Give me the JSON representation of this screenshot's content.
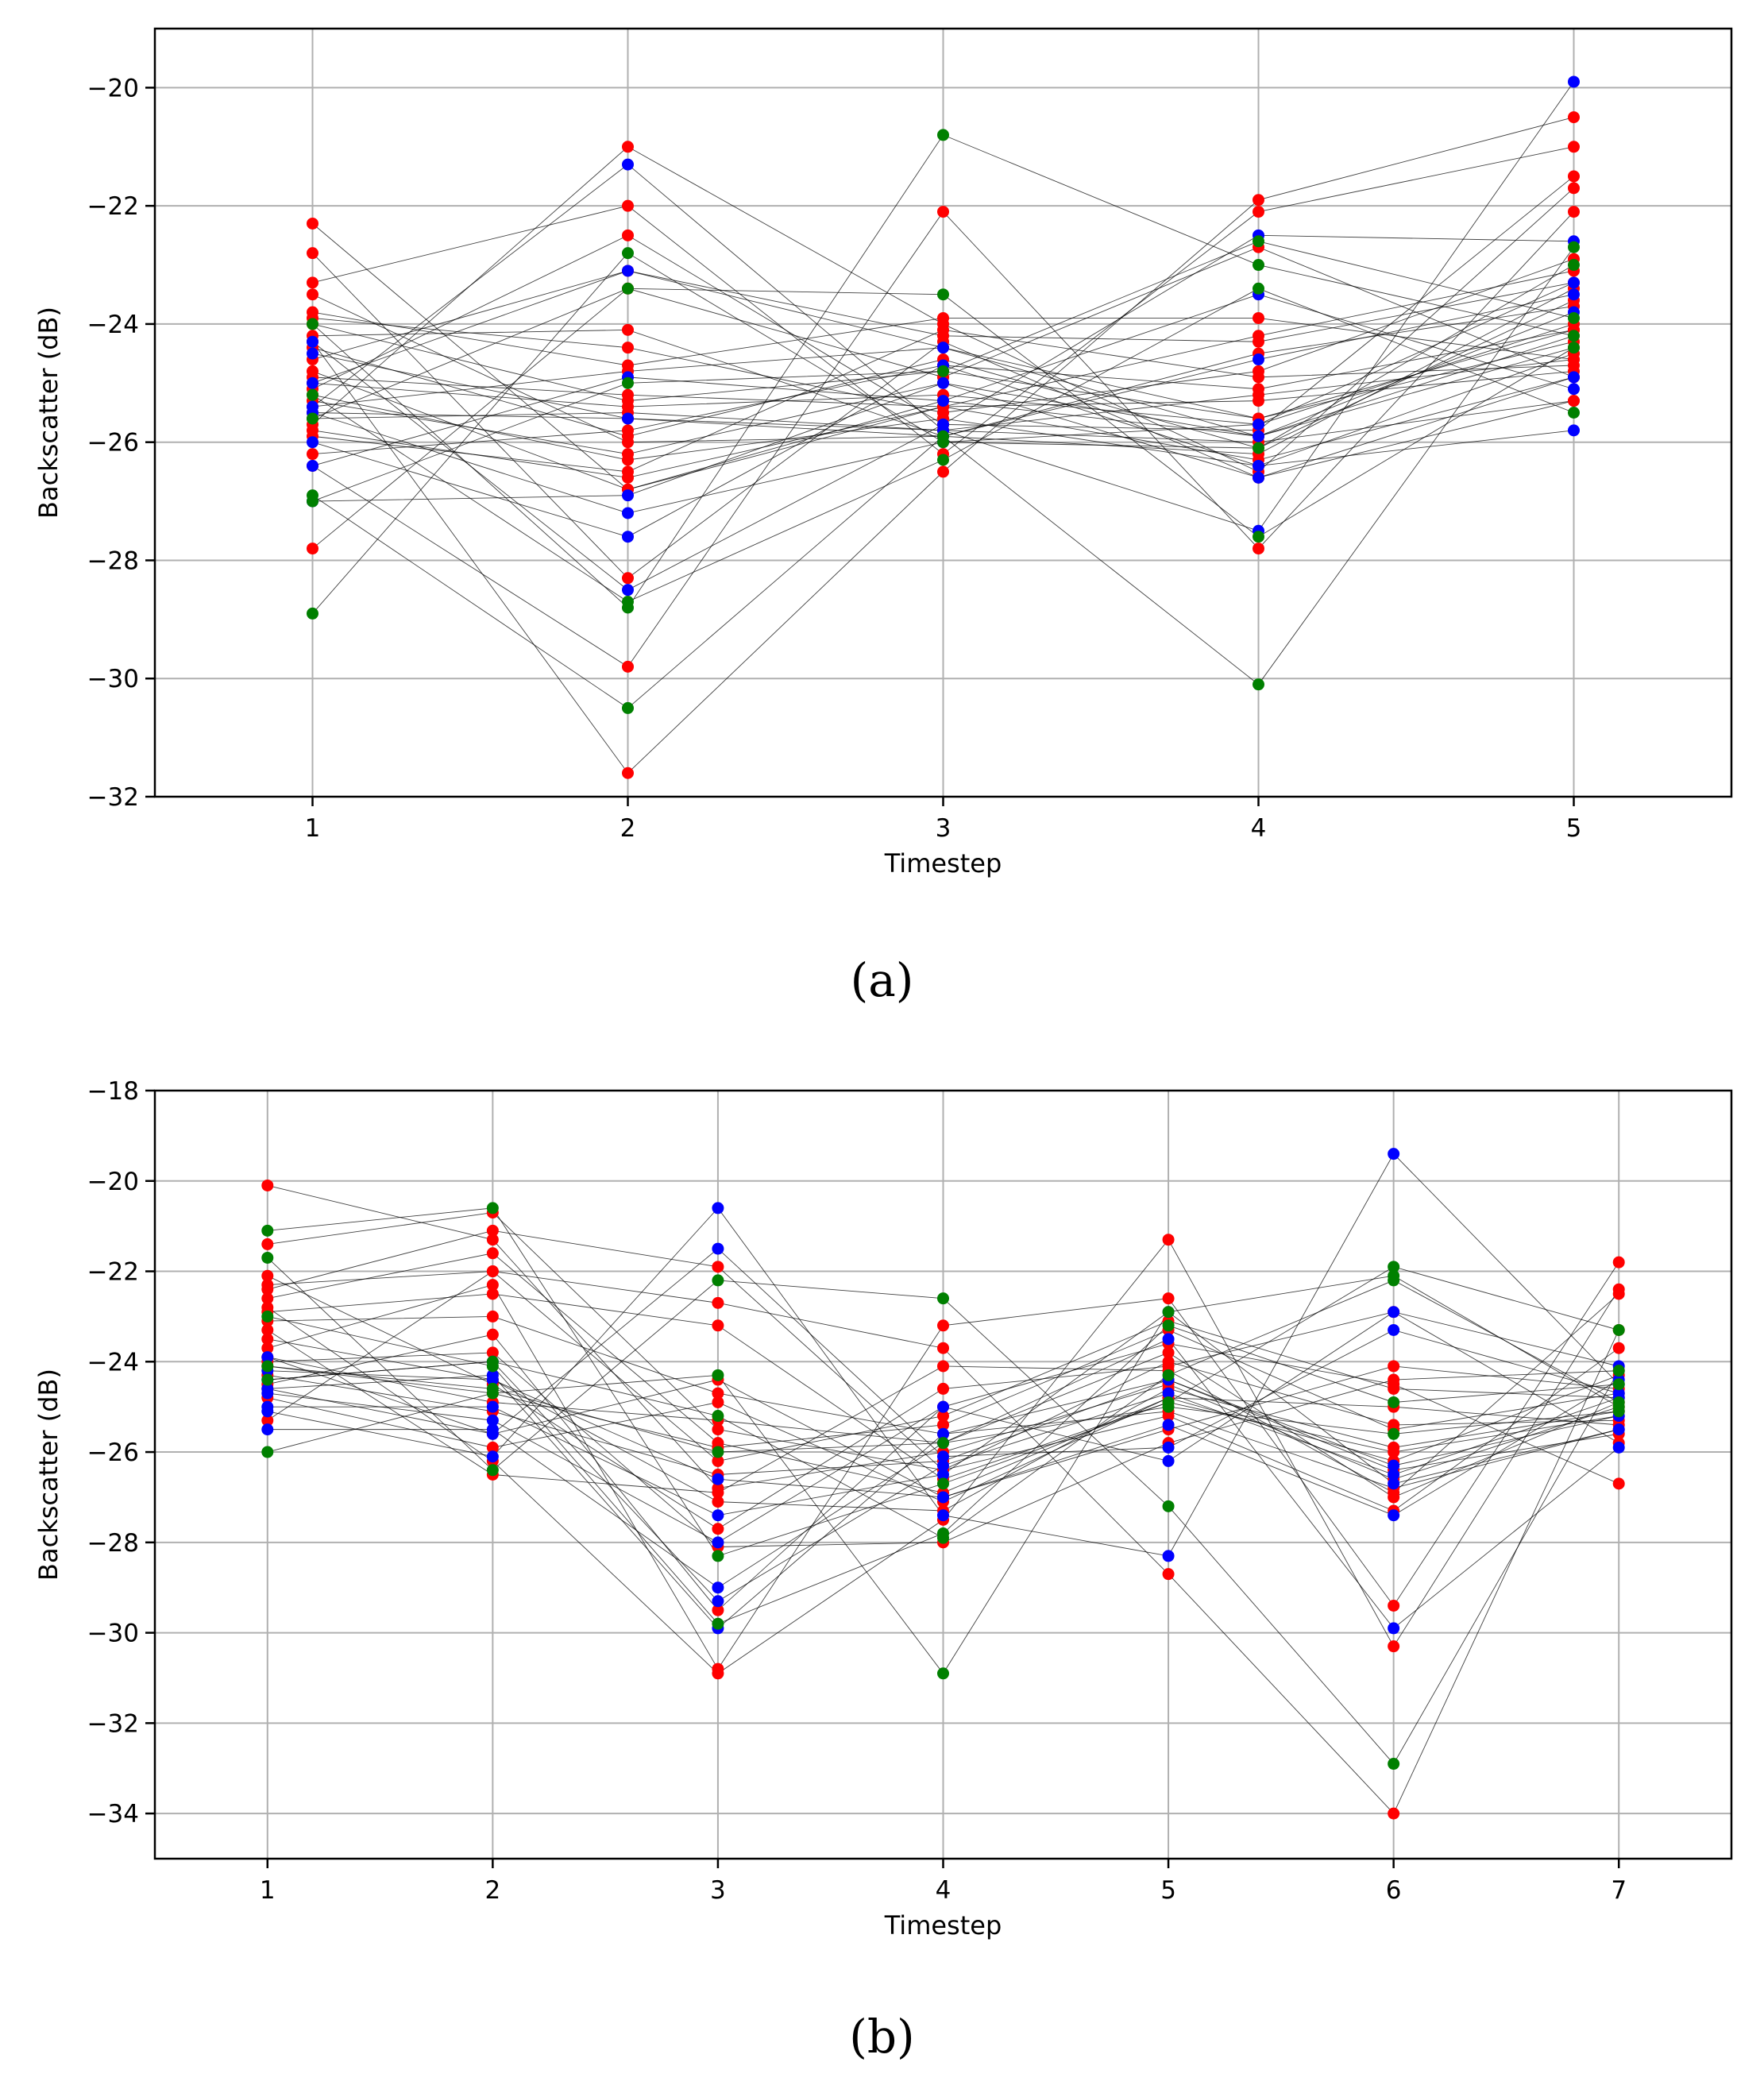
{
  "chart_data": [
    {
      "type": "line",
      "panel_label": "(a)",
      "xlabel": "Timestep",
      "ylabel": "Backscatter (dB)",
      "x": [
        1,
        2,
        3,
        4,
        5
      ],
      "xticks": [
        "1",
        "2",
        "3",
        "4",
        "5"
      ],
      "xlim": [
        0.5,
        5.5
      ],
      "ylim": [
        -32,
        -19
      ],
      "yticks": [
        -32,
        -30,
        -28,
        -26,
        -24,
        -22,
        -20
      ],
      "ytick_labels": [
        "−32",
        "−30",
        "−28",
        "−26",
        "−24",
        "−22",
        "−20"
      ],
      "grid": true,
      "line_color": "#000000",
      "point_colors": [
        "#ff0000",
        "#0000ff",
        "#008000"
      ],
      "series": [
        {
          "color": "#ff0000",
          "values": [
            -24.0,
            -25.3,
            -24.8,
            -25.6,
            -24.1
          ]
        },
        {
          "color": "#ff0000",
          "values": [
            -25.3,
            -26.2,
            -25.0,
            -25.9,
            -24.4
          ]
        },
        {
          "color": "#ff0000",
          "values": [
            -24.6,
            -23.1,
            -24.2,
            -24.3,
            -23.3
          ]
        },
        {
          "color": "#ff0000",
          "values": [
            -25.8,
            -26.6,
            -25.4,
            -26.3,
            -24.9
          ]
        },
        {
          "color": "#ff0000",
          "values": [
            -23.9,
            -24.4,
            -25.5,
            -24.8,
            -22.9
          ]
        },
        {
          "color": "#ff0000",
          "values": [
            -25.5,
            -25.6,
            -25.8,
            -25.2,
            -24.6
          ]
        },
        {
          "color": "#ff0000",
          "values": [
            -24.4,
            -25.9,
            -24.6,
            -26.1,
            -23.6
          ]
        },
        {
          "color": "#ff0000",
          "values": [
            -25.0,
            -25.4,
            -25.2,
            -25.7,
            -24.0
          ]
        },
        {
          "color": "#ff0000",
          "values": [
            -24.8,
            -26.8,
            -25.3,
            -25.9,
            -24.2
          ]
        },
        {
          "color": "#ff0000",
          "values": [
            -25.4,
            -24.8,
            -24.4,
            -25.6,
            -24.3
          ]
        },
        {
          "color": "#ff0000",
          "values": [
            -23.5,
            -26.0,
            -25.9,
            -24.5,
            -23.7
          ]
        },
        {
          "color": "#ff0000",
          "values": [
            -25.6,
            -25.5,
            -25.8,
            -26.0,
            -25.3
          ]
        },
        {
          "color": "#ff0000",
          "values": [
            -24.2,
            -24.1,
            -25.9,
            -26.2,
            -23.4
          ]
        },
        {
          "color": "#ff0000",
          "values": [
            -25.9,
            -26.5,
            -24.1,
            -24.9,
            -24.7
          ]
        },
        {
          "color": "#ff0000",
          "values": [
            -24.9,
            -25.2,
            -25.4,
            -25.3,
            -24.8
          ]
        },
        {
          "color": "#ff0000",
          "values": [
            -25.2,
            -26.3,
            -25.6,
            -26.4,
            -24.5
          ]
        },
        {
          "color": "#ff0000",
          "values": [
            -23.8,
            -24.7,
            -23.9,
            -23.9,
            -24.6
          ]
        },
        {
          "color": "#ff0000",
          "values": [
            -26.2,
            -25.8,
            -24.7,
            -25.1,
            -24.1
          ]
        },
        {
          "color": "#ff0000",
          "values": [
            -22.8,
            -28.3,
            -24.3,
            -26.6,
            -25.3
          ]
        },
        {
          "color": "#ff0000",
          "values": [
            -27.8,
            -23.4,
            -24.9,
            -22.7,
            -24.9
          ]
        },
        {
          "color": "#ff0000",
          "values": [
            -22.3,
            -26.8,
            -25.4,
            -24.2,
            -23.1
          ]
        },
        {
          "color": "#ff0000",
          "values": [
            -25.7,
            -21.0,
            -24.0,
            -26.5,
            -21.7
          ]
        },
        {
          "color": "#ff0000",
          "values": [
            -26.4,
            -29.8,
            -22.1,
            -27.8,
            -22.1
          ]
        },
        {
          "color": "#ff0000",
          "values": [
            -24.3,
            -31.6,
            -26.5,
            -21.9,
            -20.5
          ]
        },
        {
          "color": "#ff0000",
          "values": [
            -23.3,
            -22.0,
            -26.2,
            -22.1,
            -21.0
          ]
        },
        {
          "color": "#ff0000",
          "values": [
            -25.1,
            -22.5,
            -25.7,
            -25.8,
            -21.5
          ]
        },
        {
          "color": "#0000ff",
          "values": [
            -25.4,
            -21.3,
            -25.8,
            -27.5,
            -19.9
          ]
        },
        {
          "color": "#0000ff",
          "values": [
            -26.0,
            -27.6,
            -24.7,
            -26.4,
            -25.8
          ]
        },
        {
          "color": "#0000ff",
          "values": [
            -24.5,
            -25.6,
            -25.9,
            -24.6,
            -23.5
          ]
        },
        {
          "color": "#0000ff",
          "values": [
            -27.0,
            -26.9,
            -25.0,
            -26.6,
            -24.9
          ]
        },
        {
          "color": "#0000ff",
          "values": [
            -24.3,
            -28.5,
            -25.7,
            -22.5,
            -22.6
          ]
        },
        {
          "color": "#0000ff",
          "values": [
            -25.0,
            -23.1,
            -24.4,
            -25.9,
            -23.8
          ]
        },
        {
          "color": "#0000ff",
          "values": [
            -26.4,
            -24.9,
            -25.3,
            -23.5,
            -25.1
          ]
        },
        {
          "color": "#0000ff",
          "values": [
            -25.5,
            -27.2,
            -26.0,
            -25.7,
            -23.3
          ]
        },
        {
          "color": "#008000",
          "values": [
            -28.9,
            -22.8,
            -26.0,
            -26.1,
            -23.0
          ]
        },
        {
          "color": "#008000",
          "values": [
            -26.9,
            -30.5,
            -25.9,
            -30.1,
            -22.7
          ]
        },
        {
          "color": "#008000",
          "values": [
            -24.0,
            -28.8,
            -20.8,
            -23.0,
            -24.2
          ]
        },
        {
          "color": "#008000",
          "values": [
            -27.0,
            -25.0,
            -24.8,
            -22.6,
            -23.9
          ]
        },
        {
          "color": "#008000",
          "values": [
            -25.6,
            -23.4,
            -23.5,
            -27.6,
            -24.4
          ]
        },
        {
          "color": "#008000",
          "values": [
            -25.2,
            -28.7,
            -26.3,
            -23.4,
            -25.5
          ]
        }
      ]
    },
    {
      "type": "line",
      "panel_label": "(b)",
      "xlabel": "Timestep",
      "ylabel": "Backscatter (dB)",
      "x": [
        1,
        2,
        3,
        4,
        5,
        6,
        7
      ],
      "xticks": [
        "1",
        "2",
        "3",
        "4",
        "5",
        "6",
        "7"
      ],
      "xlim": [
        0.5,
        7.5
      ],
      "ylim": [
        -35,
        -18
      ],
      "yticks": [
        -34,
        -32,
        -30,
        -28,
        -26,
        -24,
        -22,
        -20,
        -18
      ],
      "ytick_labels": [
        "−34",
        "−32",
        "−30",
        "−28",
        "−26",
        "−24",
        "−22",
        "−20",
        "−18"
      ],
      "grid": true,
      "line_color": "#000000",
      "point_colors": [
        "#ff0000",
        "#0000ff",
        "#008000"
      ],
      "series": [
        {
          "color": "#ff0000",
          "values": [
            -20.1,
            -21.3,
            -26.8,
            -26.0,
            -24.5,
            -26.6,
            -25.0
          ]
        },
        {
          "color": "#ff0000",
          "values": [
            -21.4,
            -20.7,
            -25.5,
            -26.4,
            -24.0,
            -25.4,
            -25.3
          ]
        },
        {
          "color": "#ff0000",
          "values": [
            -22.3,
            -22.0,
            -26.2,
            -25.2,
            -23.1,
            -24.6,
            -24.8
          ]
        },
        {
          "color": "#ff0000",
          "values": [
            -22.6,
            -21.6,
            -25.8,
            -26.9,
            -24.8,
            -26.2,
            -24.3
          ]
        },
        {
          "color": "#ff0000",
          "values": [
            -23.1,
            -23.0,
            -24.7,
            -25.6,
            -25.1,
            -26.8,
            -25.5
          ]
        },
        {
          "color": "#ff0000",
          "values": [
            -23.5,
            -24.4,
            -27.1,
            -27.3,
            -24.6,
            -25.9,
            -25.1
          ]
        },
        {
          "color": "#ff0000",
          "values": [
            -23.9,
            -24.9,
            -25.3,
            -25.8,
            -23.8,
            -27.0,
            -24.9
          ]
        },
        {
          "color": "#ff0000",
          "values": [
            -24.3,
            -25.1,
            -26.5,
            -26.2,
            -24.4,
            -26.4,
            -25.6
          ]
        },
        {
          "color": "#ff0000",
          "values": [
            -24.6,
            -25.6,
            -24.4,
            -27.0,
            -25.5,
            -24.1,
            -24.6
          ]
        },
        {
          "color": "#ff0000",
          "values": [
            -22.9,
            -22.5,
            -23.2,
            -26.6,
            -24.9,
            -26.0,
            -25.2
          ]
        },
        {
          "color": "#ff0000",
          "values": [
            -24.1,
            -24.7,
            -25.9,
            -25.4,
            -23.3,
            -25.5,
            -24.7
          ]
        },
        {
          "color": "#ff0000",
          "values": [
            -23.3,
            -26.5,
            -26.9,
            -24.1,
            -24.2,
            -26.9,
            -22.5
          ]
        },
        {
          "color": "#ff0000",
          "values": [
            -24.8,
            -25.9,
            -24.9,
            -27.1,
            -24.8,
            -25.0,
            -25.4
          ]
        },
        {
          "color": "#ff0000",
          "values": [
            -22.4,
            -21.1,
            -21.9,
            -26.4,
            -25.2,
            -27.3,
            -23.7
          ]
        },
        {
          "color": "#ff0000",
          "values": [
            -24.5,
            -23.4,
            -29.5,
            -25.0,
            -23.6,
            -24.5,
            -26.7
          ]
        },
        {
          "color": "#ff0000",
          "values": [
            -23.7,
            -22.3,
            -30.8,
            -23.2,
            -22.6,
            -29.4,
            -21.8
          ]
        },
        {
          "color": "#ff0000",
          "values": [
            -22.8,
            -26.2,
            -30.9,
            -27.5,
            -21.3,
            -30.3,
            -22.4
          ]
        },
        {
          "color": "#ff0000",
          "values": [
            -25.3,
            -22.0,
            -22.7,
            -23.7,
            -28.7,
            -34.0,
            -23.3
          ]
        },
        {
          "color": "#ff0000",
          "values": [
            -24.0,
            -23.8,
            -28.1,
            -28.0,
            -25.8,
            -24.4,
            -24.2
          ]
        },
        {
          "color": "#ff0000",
          "values": [
            -22.1,
            -24.5,
            -27.7,
            -24.6,
            -24.1,
            -22.9,
            -25.8
          ]
        },
        {
          "color": "#0000ff",
          "values": [
            -25.1,
            -26.1,
            -20.6,
            -27.4,
            -28.3,
            -19.4,
            -24.5
          ]
        },
        {
          "color": "#0000ff",
          "values": [
            -25.5,
            -25.5,
            -29.0,
            -25.8,
            -23.5,
            -29.9,
            -25.9
          ]
        },
        {
          "color": "#0000ff",
          "values": [
            -24.4,
            -24.0,
            -29.3,
            -26.3,
            -24.7,
            -26.5,
            -24.8
          ]
        },
        {
          "color": "#0000ff",
          "values": [
            -24.7,
            -25.3,
            -28.0,
            -25.0,
            -26.2,
            -22.9,
            -24.1
          ]
        },
        {
          "color": "#0000ff",
          "values": [
            -25.0,
            -25.0,
            -27.4,
            -26.5,
            -22.9,
            -26.7,
            -25.5
          ]
        },
        {
          "color": "#0000ff",
          "values": [
            -23.9,
            -25.6,
            -21.5,
            -26.1,
            -25.9,
            -23.3,
            -24.7
          ]
        },
        {
          "color": "#0000ff",
          "values": [
            -24.2,
            -24.4,
            -26.6,
            -27.0,
            -25.4,
            -27.4,
            -24.4
          ]
        },
        {
          "color": "#0000ff",
          "values": [
            -24.6,
            -24.3,
            -29.9,
            -25.6,
            -24.4,
            -26.3,
            -25.2
          ]
        },
        {
          "color": "#008000",
          "values": [
            -21.1,
            -20.6,
            -28.3,
            -26.7,
            -24.9,
            -21.9,
            -23.3
          ]
        },
        {
          "color": "#008000",
          "values": [
            -21.7,
            -26.4,
            -22.2,
            -22.6,
            -27.2,
            -32.9,
            -24.2
          ]
        },
        {
          "color": "#008000",
          "values": [
            -26.0,
            -24.7,
            -24.3,
            -30.9,
            -22.9,
            -22.1,
            -25.0
          ]
        },
        {
          "color": "#008000",
          "values": [
            -23.0,
            -24.1,
            -29.8,
            -27.8,
            -23.2,
            -24.9,
            -24.5
          ]
        },
        {
          "color": "#008000",
          "values": [
            -24.1,
            -24.6,
            -26.0,
            -25.8,
            -25.0,
            -25.6,
            -25.1
          ]
        },
        {
          "color": "#008000",
          "values": [
            -24.4,
            -24.0,
            -25.2,
            -27.9,
            -24.3,
            -22.2,
            -24.9
          ]
        }
      ]
    }
  ]
}
